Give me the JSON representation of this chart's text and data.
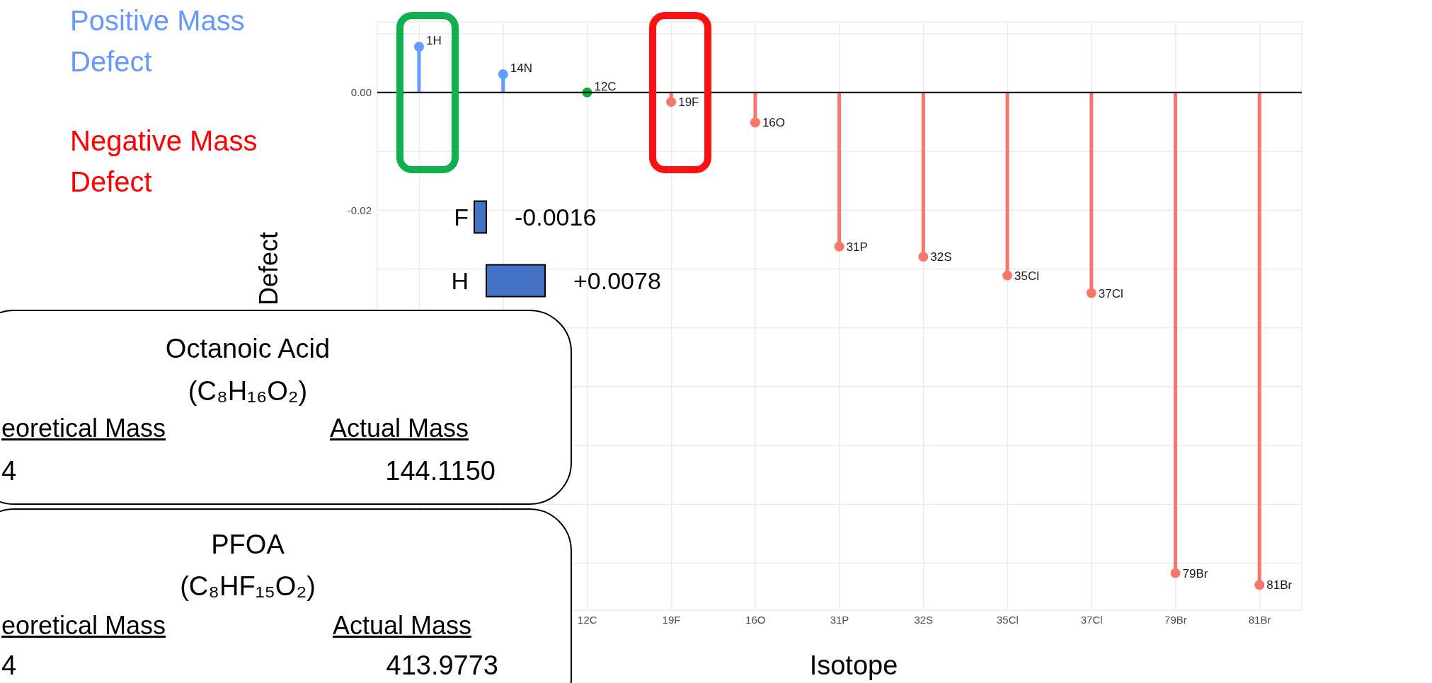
{
  "chart_data": [
    {
      "type": "lollipop",
      "xlabel": "Isotope",
      "ylabel": "Defect",
      "categories": [
        "1H",
        "14N",
        "12C",
        "19F",
        "16O",
        "31P",
        "32S",
        "35Cl",
        "37Cl",
        "79Br",
        "81Br"
      ],
      "values": [
        0.0078,
        0.0031,
        0,
        -0.0016,
        -0.0051,
        -0.0262,
        -0.0279,
        -0.0311,
        -0.0341,
        -0.0817,
        -0.0837
      ],
      "colors": [
        "#619cff",
        "#619cff",
        "#00b030",
        "#f8766d",
        "#f8766d",
        "#f8766d",
        "#f8766d",
        "#f8766d",
        "#f8766d",
        "#f8766d",
        "#f8766d"
      ],
      "ylim": [
        -0.088,
        0.012
      ],
      "yticks": [
        {
          "value": 0.01,
          "label": null
        },
        {
          "value": 0,
          "label": "0.00"
        },
        {
          "value": -0.01,
          "label": null
        },
        {
          "value": -0.02,
          "label": "-0.02"
        },
        {
          "value": -0.03,
          "label": null
        },
        {
          "value": -0.04,
          "label": null
        },
        {
          "value": -0.05,
          "label": null
        },
        {
          "value": -0.06,
          "label": null
        },
        {
          "value": -0.07,
          "label": null
        },
        {
          "value": -0.08,
          "label": null
        }
      ],
      "grid": true,
      "marker": "circle",
      "ref_lines": [
        {
          "axis": "y",
          "value": 0,
          "color": "#000000"
        }
      ],
      "annotations": [
        "Positive Mass Defect",
        "Negative Mass Defect",
        "Octanoic Acid",
        "(C₈H₁₆O₂)",
        "eoretical Mass",
        "Actual Mass",
        "4",
        "144.1150",
        "PFOA",
        "(C₈HF₁₅O₂)",
        "eoretical Mass",
        "Actual Mass",
        "4",
        "413.9773"
      ]
    },
    {
      "type": "bar",
      "orientation": "horizontal",
      "categories": [
        "F",
        "H"
      ],
      "values": [
        -0.0016,
        0.0078
      ],
      "color": "#4472c4",
      "value_labels": [
        "-0.0016",
        "+0.0078"
      ]
    }
  ]
}
